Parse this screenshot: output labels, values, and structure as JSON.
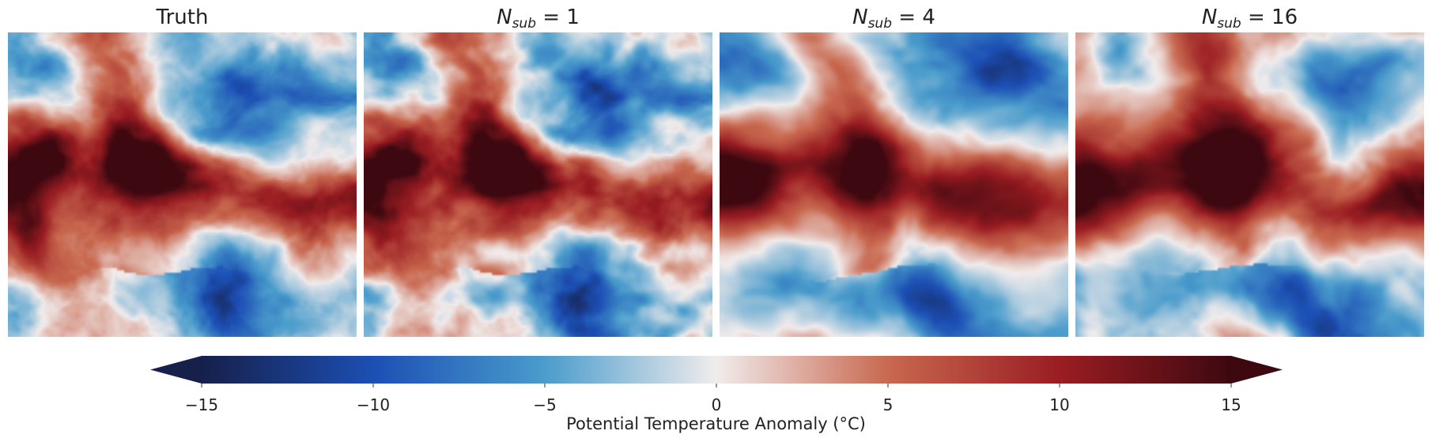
{
  "chart_data": {
    "type": "heatmap",
    "panels": [
      {
        "title": "Truth",
        "title_html": "Truth"
      },
      {
        "title": "N_sub = 1",
        "title_html": "<i>N</i><sub>sub</sub> = 1"
      },
      {
        "title": "N_sub = 4",
        "title_html": "<i>N</i><sub>sub</sub> = 4"
      },
      {
        "title": "N_sub = 16",
        "title_html": "<i>N</i><sub>sub</sub> = 16"
      }
    ],
    "colorbar": {
      "label": "Potential Temperature Anomaly (°C)",
      "range": [
        -15,
        15
      ],
      "ticks": [
        -15,
        -10,
        -5,
        0,
        5,
        10,
        15
      ],
      "tick_labels": [
        "−15",
        "−10",
        "−5",
        "0",
        "5",
        "10",
        "15"
      ],
      "extend": "both",
      "colormap": [
        "#16204a",
        "#1c4fb4",
        "#4a9ccc",
        "#f1ecec",
        "#c8684f",
        "#9a1d22",
        "#3d0810"
      ]
    }
  }
}
